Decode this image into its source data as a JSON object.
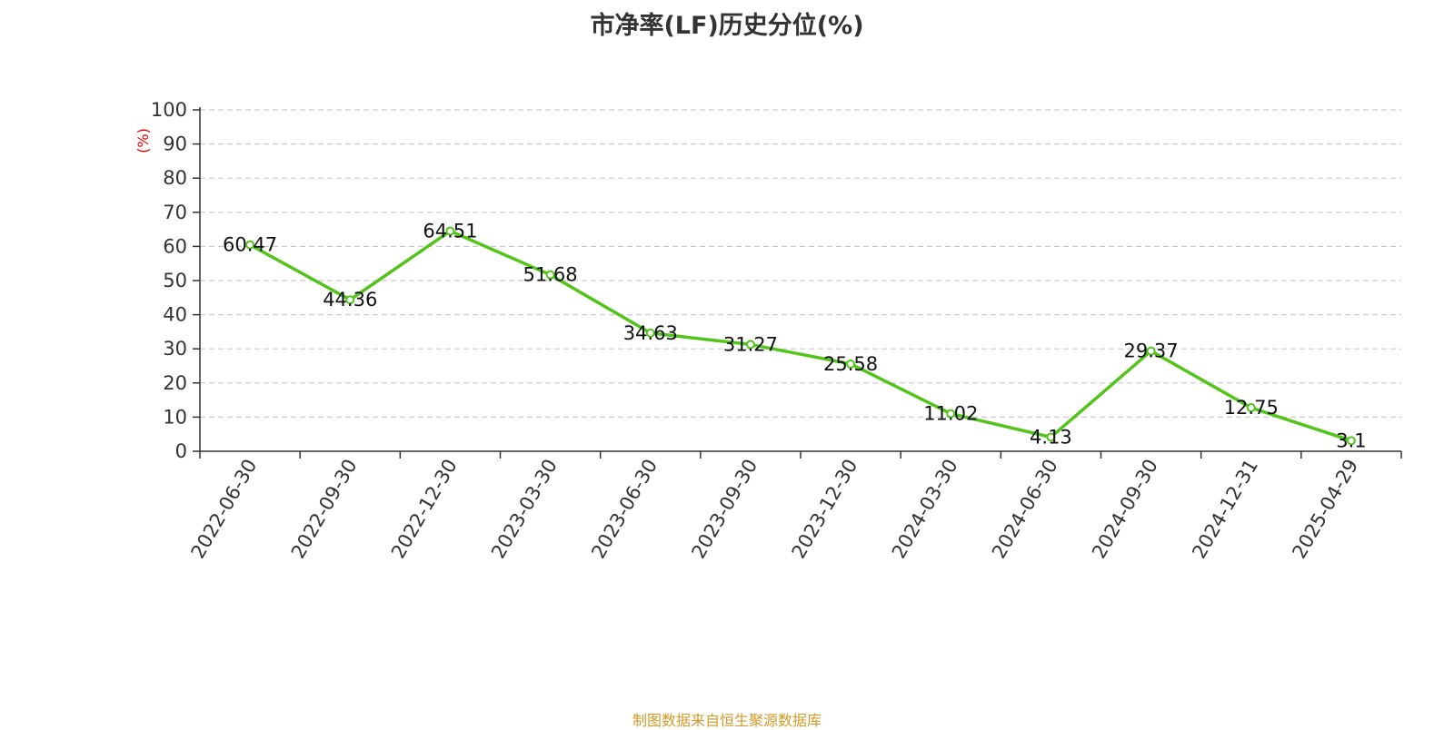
{
  "chart_data": {
    "type": "line",
    "title": "市净率(LF)历史分位(%)",
    "ylabel": "(%)",
    "xlabel": "",
    "categories": [
      "2022-06-30",
      "2022-09-30",
      "2022-12-30",
      "2023-03-30",
      "2023-06-30",
      "2023-09-30",
      "2023-12-30",
      "2024-03-30",
      "2024-06-30",
      "2024-09-30",
      "2024-12-31",
      "2025-04-29"
    ],
    "series": [
      {
        "values": [
          60.47,
          44.36,
          64.51,
          51.68,
          34.63,
          31.27,
          25.58,
          11.02,
          4.13,
          29.37,
          12.75,
          3.1
        ],
        "data_labels": [
          "60.47",
          "44.36",
          "64.51",
          "51.68",
          "34.63",
          "31.27",
          "25.58",
          "11.02",
          "4.13",
          "29.37",
          "12.75",
          "3.1"
        ]
      }
    ],
    "ylim": [
      0,
      100
    ],
    "yticks": [
      "0",
      "10",
      "20",
      "30",
      "40",
      "50",
      "60",
      "70",
      "80",
      "90",
      "100"
    ],
    "grid": "horizontal-dashed",
    "legend": "none",
    "colors": {
      "line": "#52c41a",
      "grid": "#cccccc",
      "axis": "#333333",
      "ylabel": "#e00000"
    }
  },
  "footer": {
    "source": "制图数据来自恒生聚源数据库"
  }
}
